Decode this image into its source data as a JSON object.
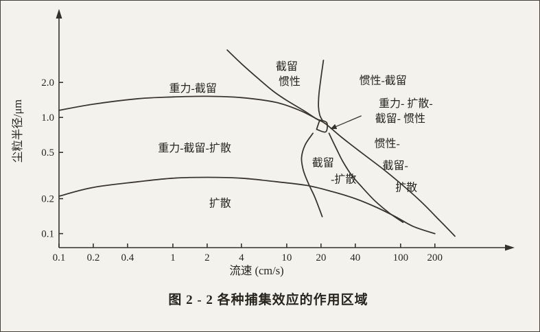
{
  "page": {
    "background": "#f4f2ed",
    "ink": "#34312b"
  },
  "figure": {
    "caption": "图 2 - 2   各种捕集效应的作用区域"
  },
  "chart_data": {
    "type": "line",
    "title": "图 2-2 各种捕集效应的作用区域",
    "xlabel": "流速 (cm/s)",
    "ylabel": "尘粒半径/μm",
    "x_scale": "log",
    "y_scale": "log",
    "xlim": [
      0.1,
      300
    ],
    "ylim": [
      0.08,
      3.5
    ],
    "grid": false,
    "legend": "none",
    "x_ticks": [
      "0.1",
      "0.2",
      "0.4",
      "1",
      "2",
      "4",
      "10",
      "20",
      "40",
      "100",
      "200"
    ],
    "x_tick_values": [
      0.1,
      0.2,
      0.4,
      1,
      2,
      4,
      10,
      20,
      40,
      100,
      200
    ],
    "y_ticks": [
      "0.1",
      "0.2",
      "0.5",
      "1.0",
      "2.0"
    ],
    "y_tick_values": [
      0.1,
      0.2,
      0.5,
      1.0,
      2.0
    ],
    "series": [
      {
        "name": "gravity-interception-upper-boundary",
        "points": [
          [
            0.1,
            1.15
          ],
          [
            0.2,
            1.3
          ],
          [
            0.5,
            1.45
          ],
          [
            1,
            1.5
          ],
          [
            2,
            1.52
          ],
          [
            4,
            1.48
          ],
          [
            8,
            1.35
          ],
          [
            13,
            1.15
          ],
          [
            18,
            0.98
          ],
          [
            22,
            0.88
          ],
          [
            30,
            0.68
          ],
          [
            45,
            0.5
          ],
          [
            70,
            0.36
          ],
          [
            100,
            0.27
          ],
          [
            150,
            0.19
          ],
          [
            220,
            0.13
          ],
          [
            300,
            0.095
          ]
        ]
      },
      {
        "name": "diffusion-upper-boundary",
        "points": [
          [
            0.1,
            0.21
          ],
          [
            0.2,
            0.25
          ],
          [
            0.5,
            0.28
          ],
          [
            1,
            0.3
          ],
          [
            2,
            0.305
          ],
          [
            4,
            0.3
          ],
          [
            8,
            0.28
          ],
          [
            15,
            0.26
          ],
          [
            25,
            0.23
          ],
          [
            40,
            0.2
          ],
          [
            60,
            0.17
          ],
          [
            90,
            0.14
          ],
          [
            130,
            0.115
          ],
          [
            200,
            0.1
          ]
        ]
      },
      {
        "name": "interception-inertia-left-boundary",
        "points": [
          [
            3,
            3.8
          ],
          [
            4,
            2.9
          ],
          [
            5.5,
            2.2
          ],
          [
            7.5,
            1.7
          ],
          [
            10,
            1.4
          ],
          [
            14,
            1.15
          ],
          [
            18,
            0.98
          ],
          [
            20,
            0.93
          ]
        ]
      },
      {
        "name": "interception-inertia-right-boundary",
        "points": [
          [
            21,
            3.1
          ],
          [
            20,
            2.2
          ],
          [
            19.2,
            1.6
          ],
          [
            19,
            1.25
          ],
          [
            19.5,
            1.05
          ],
          [
            20.5,
            0.95
          ]
        ]
      },
      {
        "name": "interception-diffusion-left-boundary",
        "points": [
          [
            17,
            0.73
          ],
          [
            14.5,
            0.58
          ],
          [
            13.5,
            0.45
          ],
          [
            14,
            0.35
          ],
          [
            15.5,
            0.27
          ],
          [
            17.5,
            0.21
          ],
          [
            19.5,
            0.16
          ],
          [
            20.5,
            0.14
          ]
        ]
      },
      {
        "name": "interception-diffusion-right-boundary",
        "points": [
          [
            23.5,
            0.73
          ],
          [
            27,
            0.55
          ],
          [
            31,
            0.42
          ],
          [
            37,
            0.32
          ],
          [
            46,
            0.25
          ],
          [
            60,
            0.19
          ],
          [
            80,
            0.15
          ],
          [
            105,
            0.125
          ]
        ]
      },
      {
        "name": "central-knot-region",
        "closed": true,
        "points": [
          [
            19.5,
            0.95
          ],
          [
            22.5,
            0.9
          ],
          [
            22,
            0.75
          ],
          [
            18.3,
            0.79
          ]
        ]
      }
    ],
    "region_labels": [
      {
        "id": "gravity-interception",
        "lines": [
          "重力-截留"
        ],
        "x": 1.5,
        "y": 1.8
      },
      {
        "id": "interception-inertia",
        "lines": [
          "截留",
          "惯性"
        ],
        "x": 10,
        "y": 2.4,
        "line_dx": [
          0,
          4
        ]
      },
      {
        "id": "inertia-interception",
        "lines": [
          "惯性-截留"
        ],
        "x": 70,
        "y": 2.1
      },
      {
        "id": "gravity-diffusion-interception-inertia",
        "lines": [
          "重力- 扩散-",
          "截留- 惯性"
        ],
        "x": 105,
        "y": 1.15,
        "line_dx": [
          4,
          -4
        ]
      },
      {
        "id": "gravity-interception-diffusion",
        "lines": [
          "重力-截留-扩散"
        ],
        "x": 1.55,
        "y": 0.55
      },
      {
        "id": "interception-diffusion",
        "lines": [
          "截留",
          "-扩散"
        ],
        "x": 26,
        "y": 0.35,
        "line_dx": [
          -16,
          14
        ],
        "lh": 24
      },
      {
        "id": "inertia-interception-diffusion",
        "lines": [
          "惯性-",
          "截留-",
          "扩散"
        ],
        "x": 85,
        "y": 0.39,
        "line_dx": [
          -8,
          4,
          20
        ],
        "lh": 32
      },
      {
        "id": "diffusion",
        "lines": [
          "扩散"
        ],
        "x": 2.6,
        "y": 0.185
      }
    ],
    "annotations": [
      {
        "type": "arrow",
        "from": [
          45,
          1.03
        ],
        "to": [
          24.5,
          0.8
        ]
      }
    ]
  }
}
